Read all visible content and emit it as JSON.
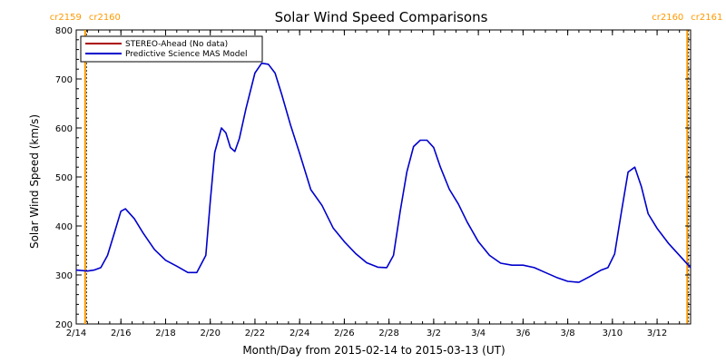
{
  "chart_data": {
    "type": "line",
    "title": "Solar Wind Speed Comparisons",
    "xlabel": "Month/Day from 2015-02-14 to 2015-03-13 (UT)",
    "ylabel": "Solar Wind Speed (km/s)",
    "xlim": [
      0,
      27.5
    ],
    "ylim": [
      200,
      800
    ],
    "y_ticks": [
      200,
      300,
      400,
      500,
      600,
      700,
      800
    ],
    "x_ticks": [
      {
        "x": 0,
        "label": "2/14"
      },
      {
        "x": 2,
        "label": "2/16"
      },
      {
        "x": 4,
        "label": "2/18"
      },
      {
        "x": 6,
        "label": "2/20"
      },
      {
        "x": 8,
        "label": "2/22"
      },
      {
        "x": 10,
        "label": "2/24"
      },
      {
        "x": 12,
        "label": "2/26"
      },
      {
        "x": 14,
        "label": "2/28"
      },
      {
        "x": 16,
        "label": "3/2"
      },
      {
        "x": 18,
        "label": "3/4"
      },
      {
        "x": 20,
        "label": "3/6"
      },
      {
        "x": 22,
        "label": "3/8"
      },
      {
        "x": 24,
        "label": "3/10"
      },
      {
        "x": 26,
        "label": "3/12"
      }
    ],
    "carrington_markers": [
      {
        "x": 0.4,
        "label_left": "cr2159",
        "label_right": "cr2160",
        "side": "left",
        "color": "#ff9900"
      },
      {
        "x": 27.35,
        "label_left": "cr2160",
        "label_right": "cr2161",
        "side": "right",
        "color": "#ff9900"
      }
    ],
    "legend": {
      "placement": "top-left",
      "entries": [
        {
          "name": "STEREO-Ahead (No data)",
          "color": "#aa0000"
        },
        {
          "name": "Predictive Science MAS Model",
          "color": "#0000cc"
        }
      ]
    },
    "series": [
      {
        "name": "Predictive Science MAS Model",
        "color": "#0000cc",
        "x": [
          0,
          0.5,
          0.8,
          1.1,
          1.4,
          1.7,
          2.0,
          2.2,
          2.6,
          3.0,
          3.5,
          4.0,
          4.5,
          5.0,
          5.4,
          5.8,
          6.0,
          6.2,
          6.5,
          6.7,
          6.9,
          7.1,
          7.3,
          7.6,
          8.0,
          8.3,
          8.6,
          8.9,
          9.2,
          9.6,
          10.0,
          10.5,
          11.0,
          11.5,
          12.0,
          12.5,
          13.0,
          13.5,
          13.9,
          14.2,
          14.5,
          14.8,
          15.1,
          15.4,
          15.7,
          16.0,
          16.3,
          16.7,
          17.1,
          17.5,
          18.0,
          18.5,
          19.0,
          19.5,
          20.0,
          20.5,
          21.0,
          21.5,
          22.0,
          22.5,
          23.0,
          23.5,
          23.8,
          24.1,
          24.4,
          24.7,
          25.0,
          25.3,
          25.6,
          26.0,
          26.5,
          27.0,
          27.5
        ],
        "values": [
          310,
          308,
          310,
          315,
          340,
          385,
          430,
          435,
          415,
          385,
          352,
          330,
          318,
          305,
          305,
          340,
          450,
          550,
          600,
          590,
          560,
          552,
          578,
          640,
          712,
          732,
          730,
          712,
          668,
          605,
          548,
          474,
          442,
          396,
          368,
          344,
          325,
          316,
          315,
          340,
          430,
          510,
          562,
          575,
          575,
          560,
          520,
          475,
          445,
          408,
          368,
          340,
          324,
          320,
          320,
          315,
          305,
          295,
          287,
          285,
          297,
          310,
          315,
          343,
          428,
          510,
          520,
          480,
          425,
          395,
          365,
          340,
          315
        ]
      }
    ]
  }
}
